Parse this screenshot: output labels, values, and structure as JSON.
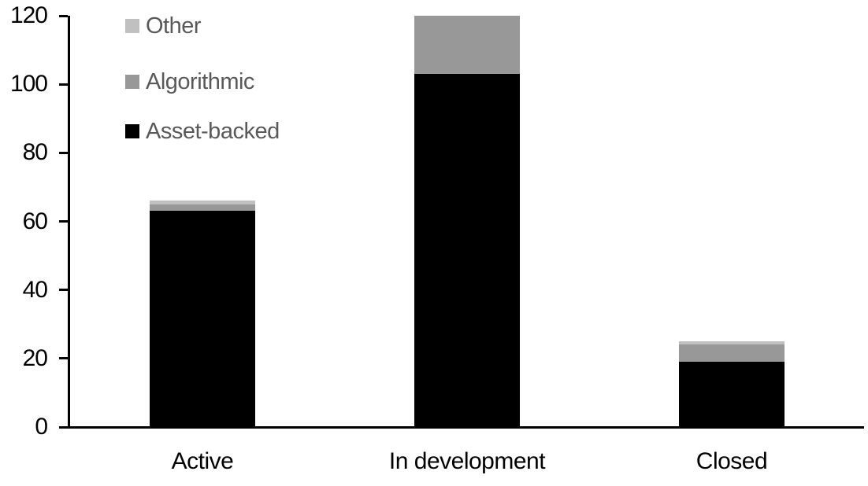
{
  "chart_data": {
    "type": "bar",
    "stacked": true,
    "title": "",
    "xlabel": "",
    "ylabel": "",
    "categories": [
      "Active",
      "In development",
      "Closed"
    ],
    "series": [
      {
        "name": "Asset-backed",
        "color": "#000000",
        "values": [
          63,
          103,
          19
        ]
      },
      {
        "name": "Algorithmic",
        "color": "#989898",
        "values": [
          2,
          17,
          5
        ]
      },
      {
        "name": "Other",
        "color": "#c0c0c0",
        "values": [
          1,
          0,
          1
        ]
      }
    ],
    "ylim": [
      0,
      120
    ],
    "yticks": [
      0,
      20,
      40,
      60,
      80,
      100,
      120
    ],
    "grid": false,
    "legend_position": "top-left",
    "legend_order": [
      "Other",
      "Algorithmic",
      "Asset-backed"
    ],
    "colors": {
      "axis": "#000000",
      "tick_label": "#000000",
      "category_label": "#000000",
      "legend_text": "#595959",
      "background": "#ffffff"
    }
  }
}
